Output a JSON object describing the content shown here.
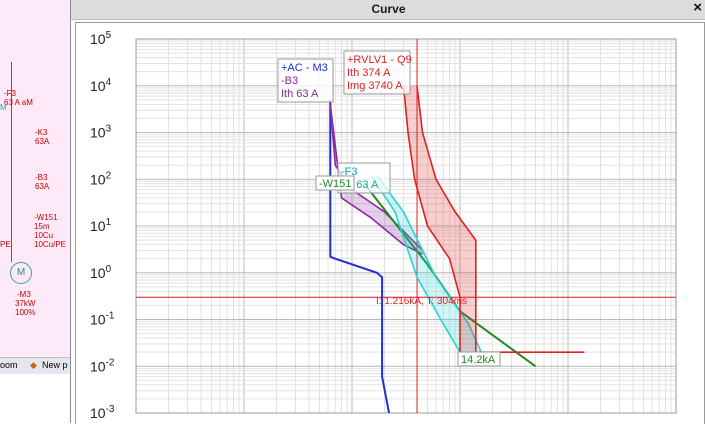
{
  "window": {
    "title": "Curve"
  },
  "background_window": {
    "labels": [
      {
        "id": "f3",
        "lines": [
          "-F3",
          "63 A aM"
        ]
      },
      {
        "id": "k3",
        "lines": [
          "-K3",
          "63A"
        ]
      },
      {
        "id": "b3",
        "lines": [
          "-B3",
          "63A"
        ]
      },
      {
        "id": "w151",
        "lines": [
          "-W151",
          "15m",
          "10Cu",
          "10Cu/PE"
        ]
      },
      {
        "id": "m3",
        "lines": [
          "-M3",
          "37kW",
          "100%"
        ]
      }
    ],
    "edge_letters": {
      "m": "M",
      "pe": "PE"
    },
    "motor_symbol": "M",
    "taskbar": {
      "zoom": "oom",
      "new": "New p"
    }
  },
  "chart_data": {
    "type": "line",
    "x_scale": "log",
    "y_scale": "log",
    "ylim": [
      0.001,
      100000
    ],
    "grid": true,
    "y_ticks": [
      {
        "base": "10",
        "exp": "5"
      },
      {
        "base": "10",
        "exp": "4"
      },
      {
        "base": "10",
        "exp": "3"
      },
      {
        "base": "10",
        "exp": "2"
      },
      {
        "base": "10",
        "exp": "1"
      },
      {
        "base": "10",
        "exp": "0"
      },
      {
        "base": "10",
        "exp": "-1"
      },
      {
        "base": "10",
        "exp": "-2"
      },
      {
        "base": "10",
        "exp": "-3"
      }
    ],
    "series": [
      {
        "name": "+AC - M3",
        "color": "#1f2fd6",
        "points": [
          [
            63,
            5000
          ],
          [
            63,
            2.2
          ],
          [
            70,
            2.0
          ],
          [
            170,
            1.0
          ],
          [
            190,
            0.8
          ],
          [
            190,
            0.006
          ],
          [
            220,
            0.001
          ]
        ]
      },
      {
        "name": "-B3",
        "color": "#8a2aa0",
        "band": true,
        "upper": [
          [
            63,
            4000
          ],
          [
            70,
            200
          ],
          [
            100,
            60
          ],
          [
            200,
            20
          ],
          [
            450,
            3
          ]
        ],
        "lower": [
          [
            63,
            4000
          ],
          [
            80,
            40
          ],
          [
            150,
            15
          ],
          [
            300,
            4
          ],
          [
            450,
            2.5
          ]
        ]
      },
      {
        "name": "-W151",
        "color": "#1f8a2a",
        "points": [
          [
            130,
            80
          ],
          [
            500,
            1.5
          ],
          [
            1000,
            0.15
          ],
          [
            5000,
            0.01
          ]
        ]
      },
      {
        "name": "-F3",
        "color": "#25d4d4",
        "band": true,
        "upper": [
          [
            170,
            120
          ],
          [
            300,
            20
          ],
          [
            600,
            0.8
          ],
          [
            1200,
            0.08
          ],
          [
            1800,
            0.01
          ]
        ],
        "lower": [
          [
            150,
            120
          ],
          [
            250,
            20
          ],
          [
            400,
            0.8
          ],
          [
            700,
            0.08
          ],
          [
            1000,
            0.02
          ]
        ]
      },
      {
        "name": "+RVLV1 - Q9",
        "color": "#e02020",
        "band": true,
        "upper": [
          [
            400,
            10000
          ],
          [
            450,
            1000
          ],
          [
            600,
            100
          ],
          [
            900,
            20
          ],
          [
            1400,
            5
          ],
          [
            1400,
            0.02
          ],
          [
            14200,
            0.02
          ]
        ],
        "lower": [
          [
            300,
            10000
          ],
          [
            330,
            1000
          ],
          [
            380,
            100
          ],
          [
            500,
            10
          ],
          [
            800,
            2
          ],
          [
            1000,
            0.3
          ],
          [
            1000,
            0.02
          ]
        ]
      }
    ],
    "reference_lines": {
      "vertical_x": 400,
      "horizontal_y": 0.3,
      "color": "#e02020"
    },
    "annotations": {
      "ac_m3": {
        "lines": [
          "+AC - M3",
          "-B3",
          "Ith  63 A"
        ],
        "color": "#1f2fd6"
      },
      "q9": {
        "lines": [
          "+RVLV1 - Q9",
          "Ith  374 A",
          "Img  3740 A"
        ],
        "color": "#e02020"
      },
      "f3": {
        "lines": [
          "-F3",
          "Ith  63 A"
        ],
        "color": "#1fa0a0"
      },
      "w151": {
        "text": "-W151",
        "color": "#1f8a2a"
      },
      "intersection": {
        "text": "I: 1.216kA, T: 304ms",
        "color": "#e02020"
      },
      "short_circuit": {
        "text": "14.2kA",
        "color": "#1f8a2a"
      }
    }
  }
}
